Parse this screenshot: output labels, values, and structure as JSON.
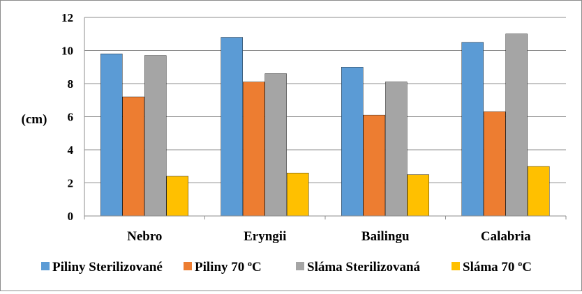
{
  "chart_data": {
    "type": "bar",
    "categories": [
      "Nebro",
      "Eryngii",
      "Bailingu",
      "Calabria"
    ],
    "series": [
      {
        "name": "Piliny Sterilizované",
        "color": "#5b9bd5",
        "values": [
          9.8,
          10.8,
          9.0,
          10.5
        ]
      },
      {
        "name": "Piliny 70 °C",
        "name_base": "Piliny 70 ",
        "name_sup": "o",
        "name_unit": "C",
        "color": "#ed7d31",
        "values": [
          7.2,
          8.1,
          6.1,
          6.3
        ]
      },
      {
        "name": "Sláma Sterilizovaná",
        "color": "#a5a5a5",
        "values": [
          9.7,
          8.6,
          8.1,
          11.0
        ]
      },
      {
        "name": "Sláma 70 °C",
        "name_base": "Sláma 70 ",
        "name_sup": "o",
        "name_unit": "C",
        "color": "#ffc000",
        "values": [
          2.4,
          2.6,
          2.5,
          3.0
        ]
      }
    ],
    "ylabel": "(cm)",
    "ylim": [
      0,
      12
    ],
    "yticks": [
      0,
      2,
      4,
      6,
      8,
      10,
      12
    ],
    "grid": true,
    "legend_position": "bottom"
  }
}
